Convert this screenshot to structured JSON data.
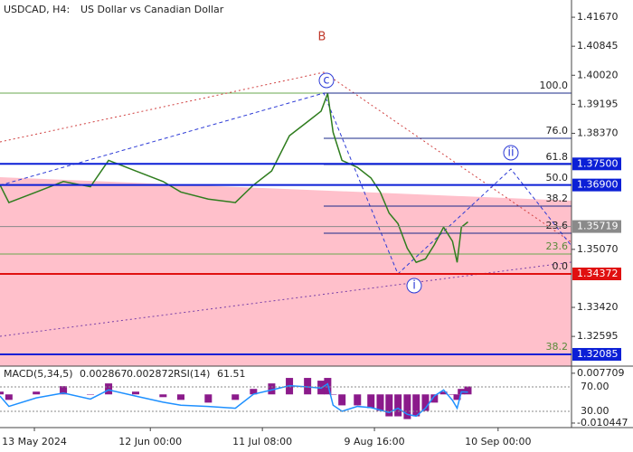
{
  "header": {
    "symbol": "USDCAD, H4:",
    "description": "US Dollar vs Canadian Dollar"
  },
  "chart_data": {
    "type": "line",
    "series": [
      {
        "name": "USDCAD",
        "color": "#2f7d1e",
        "x": [
          -8.9,
          -6.6,
          0.5,
          7.5,
          14.5,
          19.2,
          26.2,
          33.3,
          37.9,
          45,
          52,
          56.7,
          61.4,
          66,
          70.7,
          74.2,
          75.9,
          77.3,
          79.6,
          83.6,
          87.1,
          89.5,
          91.8,
          94.1,
          96.5,
          98.8,
          101.2,
          103.5,
          105.9,
          108.2,
          109.4,
          110.5,
          112.2
        ],
        "values": [
          1.369,
          1.364,
          1.367,
          1.37,
          1.3685,
          1.376,
          1.373,
          1.37,
          1.367,
          1.365,
          1.364,
          1.369,
          1.373,
          1.383,
          1.387,
          1.39,
          1.395,
          1.384,
          1.376,
          1.374,
          1.371,
          1.367,
          1.361,
          1.358,
          1.351,
          1.347,
          1.348,
          1.352,
          1.357,
          1.353,
          1.347,
          1.357,
          1.3585
        ]
      }
    ],
    "xlim": [
      -8.9,
      139
    ],
    "xticks": [
      {
        "value": 0,
        "label": "13 May 2024"
      },
      {
        "value": 30,
        "label": "12 Jun 00:00"
      },
      {
        "value": 59,
        "label": "11 Jul 08:00"
      },
      {
        "value": 88,
        "label": "9 Aug 16:00"
      },
      {
        "value": 120,
        "label": "10 Sep 00:00"
      }
    ],
    "ylim": [
      1.3175,
      1.4216
    ],
    "yticks": [
      {
        "value": 1.4167,
        "label": "1.41670"
      },
      {
        "value": 1.40845,
        "label": "1.40845"
      },
      {
        "value": 1.4002,
        "label": "1.40020"
      },
      {
        "value": 1.39195,
        "label": "1.39195"
      },
      {
        "value": 1.3837,
        "label": "1.38370"
      },
      {
        "value": 1.3507,
        "label": "1.35070"
      },
      {
        "value": 1.3342,
        "label": "1.33420"
      },
      {
        "value": 1.32595,
        "label": "1.32595"
      }
    ],
    "levels": [
      {
        "value": 1.375,
        "label": "1.37500",
        "color": "#0b1fd6"
      },
      {
        "value": 1.369,
        "label": "1.36900",
        "color": "#0b1fd6"
      },
      {
        "value": 1.35719,
        "label": "1.35719",
        "color": "#8a8a8a"
      },
      {
        "value": 1.34372,
        "label": "1.34372",
        "color": "#e01010"
      },
      {
        "value": 1.32085,
        "label": "1.32085",
        "color": "#0b1fd6"
      }
    ],
    "fib_labels": [
      "100.0",
      "76.0",
      "61.8",
      "50.0",
      "38.2",
      "23.6",
      "0.0"
    ],
    "green_fib_labels": [
      "23.6",
      "38.2"
    ],
    "wave_labels": [
      "B",
      "c",
      "ii",
      "i"
    ],
    "indicator": {
      "macd_label": "MACD(5,34,5)",
      "macd_value": 0.002867,
      "signal_value": 0.002872,
      "rsi_label": "RSI(14)",
      "rsi_value": 61.51,
      "macd_ylim": [
        -0.0121,
        0.0103
      ],
      "macd_ticks": [
        {
          "value": 0.007709,
          "label": "0.007709"
        },
        {
          "value": -0.010447,
          "label": "-0.010447"
        }
      ],
      "rsi_ylim": [
        3.3,
        104
      ],
      "rsi_ticks": [
        {
          "value": 70,
          "label": "70.00"
        },
        {
          "value": 30,
          "label": "30.00"
        }
      ],
      "macd": [
        0.001,
        -0.002,
        0.001,
        0.003,
        0,
        0.004,
        0.001,
        -0.001,
        -0.002,
        -0.003,
        -0.002,
        0.002,
        0.004,
        0.006,
        0.006,
        0.005,
        0.006,
        0,
        -0.004,
        -0.004,
        -0.005,
        -0.006,
        -0.008,
        -0.008,
        -0.009,
        -0.008,
        -0.006,
        -0.003,
        0.001,
        0,
        -0.002,
        0.002,
        0.0029
      ],
      "rsi": [
        55,
        38,
        52,
        60,
        50,
        65,
        55,
        45,
        40,
        38,
        35,
        58,
        65,
        72,
        70,
        68,
        75,
        40,
        30,
        38,
        36,
        32,
        28,
        35,
        25,
        22,
        35,
        55,
        65,
        48,
        35,
        62,
        61.5
      ]
    }
  }
}
